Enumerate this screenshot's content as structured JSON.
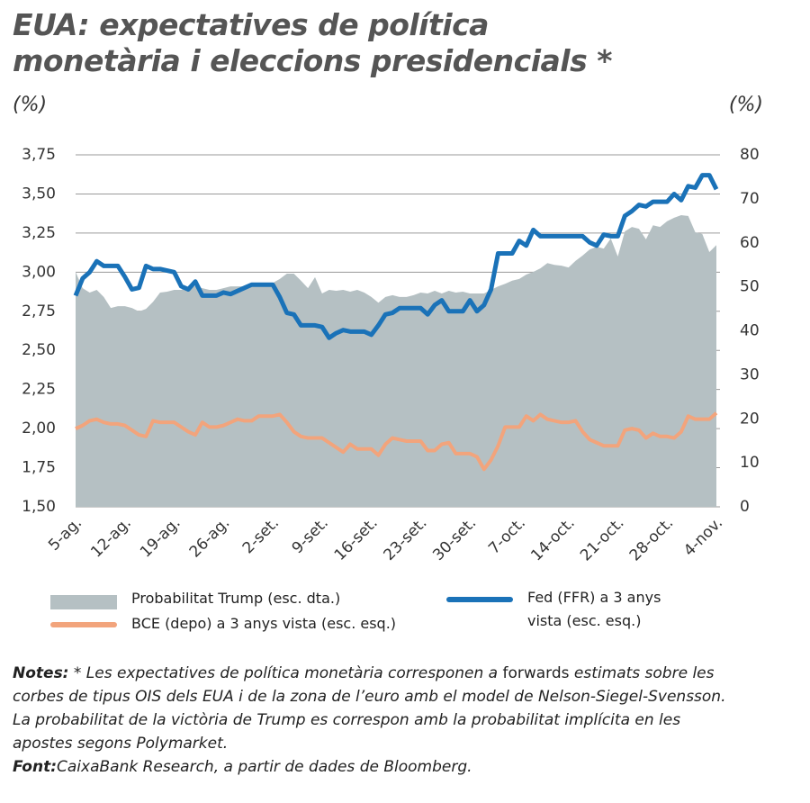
{
  "chart_data": {
    "type": "line",
    "title": "EUA: expectatives de política monetària i eleccions presidencials *",
    "y_label": "(%)",
    "y2_label": "(%)",
    "categories": [
      "5-ag.",
      null,
      null,
      null,
      null,
      null,
      null,
      "12-ag.",
      null,
      null,
      null,
      null,
      null,
      null,
      "19-ag.",
      null,
      null,
      null,
      null,
      null,
      null,
      "26-ag.",
      null,
      null,
      null,
      null,
      null,
      null,
      "2-set.",
      null,
      null,
      null,
      null,
      null,
      null,
      "9-set.",
      null,
      null,
      null,
      null,
      null,
      null,
      "16-set.",
      null,
      null,
      null,
      null,
      null,
      null,
      "23-set.",
      null,
      null,
      null,
      null,
      null,
      null,
      "30-set.",
      null,
      null,
      null,
      null,
      null,
      null,
      "7-oct.",
      null,
      null,
      null,
      null,
      null,
      null,
      "14-oct.",
      null,
      null,
      null,
      null,
      null,
      null,
      "21-oct.",
      null,
      null,
      null,
      null,
      null,
      null,
      "28-oct.",
      null,
      null,
      null,
      null,
      null,
      null,
      "4-nov."
    ],
    "ylim": [
      1.5,
      3.75
    ],
    "yticks": [
      {
        "value": 1.5,
        "label": "1,50"
      },
      {
        "value": 1.75,
        "label": "1,75"
      },
      {
        "value": 2,
        "label": "2,00"
      },
      {
        "value": 2.25,
        "label": "2,25"
      },
      {
        "value": 2.5,
        "label": "2,50"
      },
      {
        "value": 2.75,
        "label": "2,75"
      },
      {
        "value": 3,
        "label": "3,00"
      },
      {
        "value": 3.25,
        "label": "3,25"
      },
      {
        "value": 3.5,
        "label": "3,50"
      },
      {
        "value": 3.75,
        "label": "3,75"
      }
    ],
    "y2lim": [
      0,
      80
    ],
    "y2ticks": [
      0,
      10,
      20,
      30,
      40,
      50,
      60,
      70,
      80
    ],
    "grid": true,
    "series": [
      {
        "name": "Probabilitat Trump (esc. dta.)",
        "color": "#b5c0c3",
        "axis": "y2",
        "kind": "area",
        "values": [
          53.4,
          49.7,
          48.7,
          49.3,
          47.7,
          45.2,
          45.6,
          45.6,
          45.2,
          44.4,
          45.0,
          46.6,
          48.7,
          48.9,
          49.3,
          49.3,
          50.1,
          50.1,
          49.7,
          49.3,
          49.3,
          49.7,
          50.1,
          50.1,
          50.1,
          50.5,
          50.5,
          50.5,
          50.9,
          51.8,
          53.0,
          53.0,
          51.4,
          49.7,
          52.2,
          48.5,
          49.3,
          49.1,
          49.3,
          48.9,
          49.3,
          48.7,
          47.7,
          46.4,
          47.7,
          48.1,
          47.7,
          47.7,
          48.1,
          48.7,
          48.5,
          49.1,
          48.5,
          49.1,
          48.7,
          48.9,
          48.5,
          48.5,
          48.5,
          49.3,
          50.1,
          50.7,
          51.4,
          51.8,
          52.8,
          53.4,
          54.2,
          55.4,
          55.0,
          54.8,
          54.4,
          55.9,
          57.1,
          58.5,
          59.1,
          58.7,
          61.0,
          56.9,
          62.6,
          63.6,
          63.2,
          60.8,
          64.0,
          63.6,
          64.9,
          65.7,
          66.3,
          66.1,
          62.4,
          62.0,
          57.9,
          59.5
        ]
      },
      {
        "name": "BCE (depo) a 3 anys vista (esc. esq.)",
        "color": "#f2a47c",
        "values": [
          2.0,
          2.02,
          2.05,
          2.06,
          2.04,
          2.03,
          2.03,
          2.02,
          1.99,
          1.96,
          1.95,
          2.05,
          2.04,
          2.04,
          2.04,
          2.01,
          1.98,
          1.96,
          2.04,
          2.01,
          2.01,
          2.02,
          2.04,
          2.06,
          2.05,
          2.05,
          2.08,
          2.08,
          2.08,
          2.09,
          2.04,
          1.98,
          1.95,
          1.94,
          1.94,
          1.94,
          1.91,
          1.88,
          1.85,
          1.9,
          1.87,
          1.87,
          1.87,
          1.83,
          1.9,
          1.94,
          1.93,
          1.92,
          1.92,
          1.92,
          1.86,
          1.86,
          1.9,
          1.91,
          1.84,
          1.84,
          1.84,
          1.82,
          1.74,
          1.8,
          1.89,
          2.01,
          2.01,
          2.01,
          2.08,
          2.05,
          2.09,
          2.06,
          2.05,
          2.04,
          2.04,
          2.05,
          1.98,
          1.93,
          1.91,
          1.89,
          1.89,
          1.89,
          1.99,
          2.0,
          1.99,
          1.94,
          1.97,
          1.95,
          1.95,
          1.94,
          1.98,
          2.08,
          2.06,
          2.06,
          2.06,
          2.1
        ]
      },
      {
        "name": "Fed (FFR) a 3 anys vista (esc. esq.)",
        "color": "#1a72b8",
        "values": [
          2.85,
          2.96,
          3.0,
          3.07,
          3.04,
          3.04,
          3.04,
          2.97,
          2.89,
          2.9,
          3.04,
          3.02,
          3.02,
          3.01,
          3.0,
          2.91,
          2.89,
          2.94,
          2.85,
          2.85,
          2.85,
          2.87,
          2.86,
          2.88,
          2.9,
          2.92,
          2.92,
          2.92,
          2.92,
          2.84,
          2.74,
          2.73,
          2.66,
          2.66,
          2.66,
          2.65,
          2.58,
          2.61,
          2.63,
          2.62,
          2.62,
          2.62,
          2.6,
          2.66,
          2.73,
          2.74,
          2.77,
          2.77,
          2.77,
          2.77,
          2.73,
          2.79,
          2.82,
          2.75,
          2.75,
          2.75,
          2.82,
          2.75,
          2.79,
          2.89,
          3.12,
          3.12,
          3.12,
          3.2,
          3.17,
          3.27,
          3.23,
          3.23,
          3.23,
          3.23,
          3.23,
          3.23,
          3.23,
          3.19,
          3.17,
          3.24,
          3.23,
          3.23,
          3.36,
          3.39,
          3.43,
          3.42,
          3.45,
          3.45,
          3.45,
          3.5,
          3.46,
          3.55,
          3.54,
          3.62,
          3.62,
          3.53
        ]
      }
    ]
  },
  "notes": {
    "label": "Notes:",
    "text_1": "* Les expectatives de política monetària corresponen a ",
    "text_2": "forwards",
    "text_3": " estimats sobre les corbes de tipus OIS dels EUA i de la zona de l’euro amb el model de Nelson-Siegel-Svensson. La probabilitat de la victòria de Trump es correspon amb la probabilitat implícita en les apostes segons Polymarket."
  },
  "source": {
    "label": "Font:",
    "text": "CaixaBank Research, a partir de dades de Bloomberg."
  }
}
